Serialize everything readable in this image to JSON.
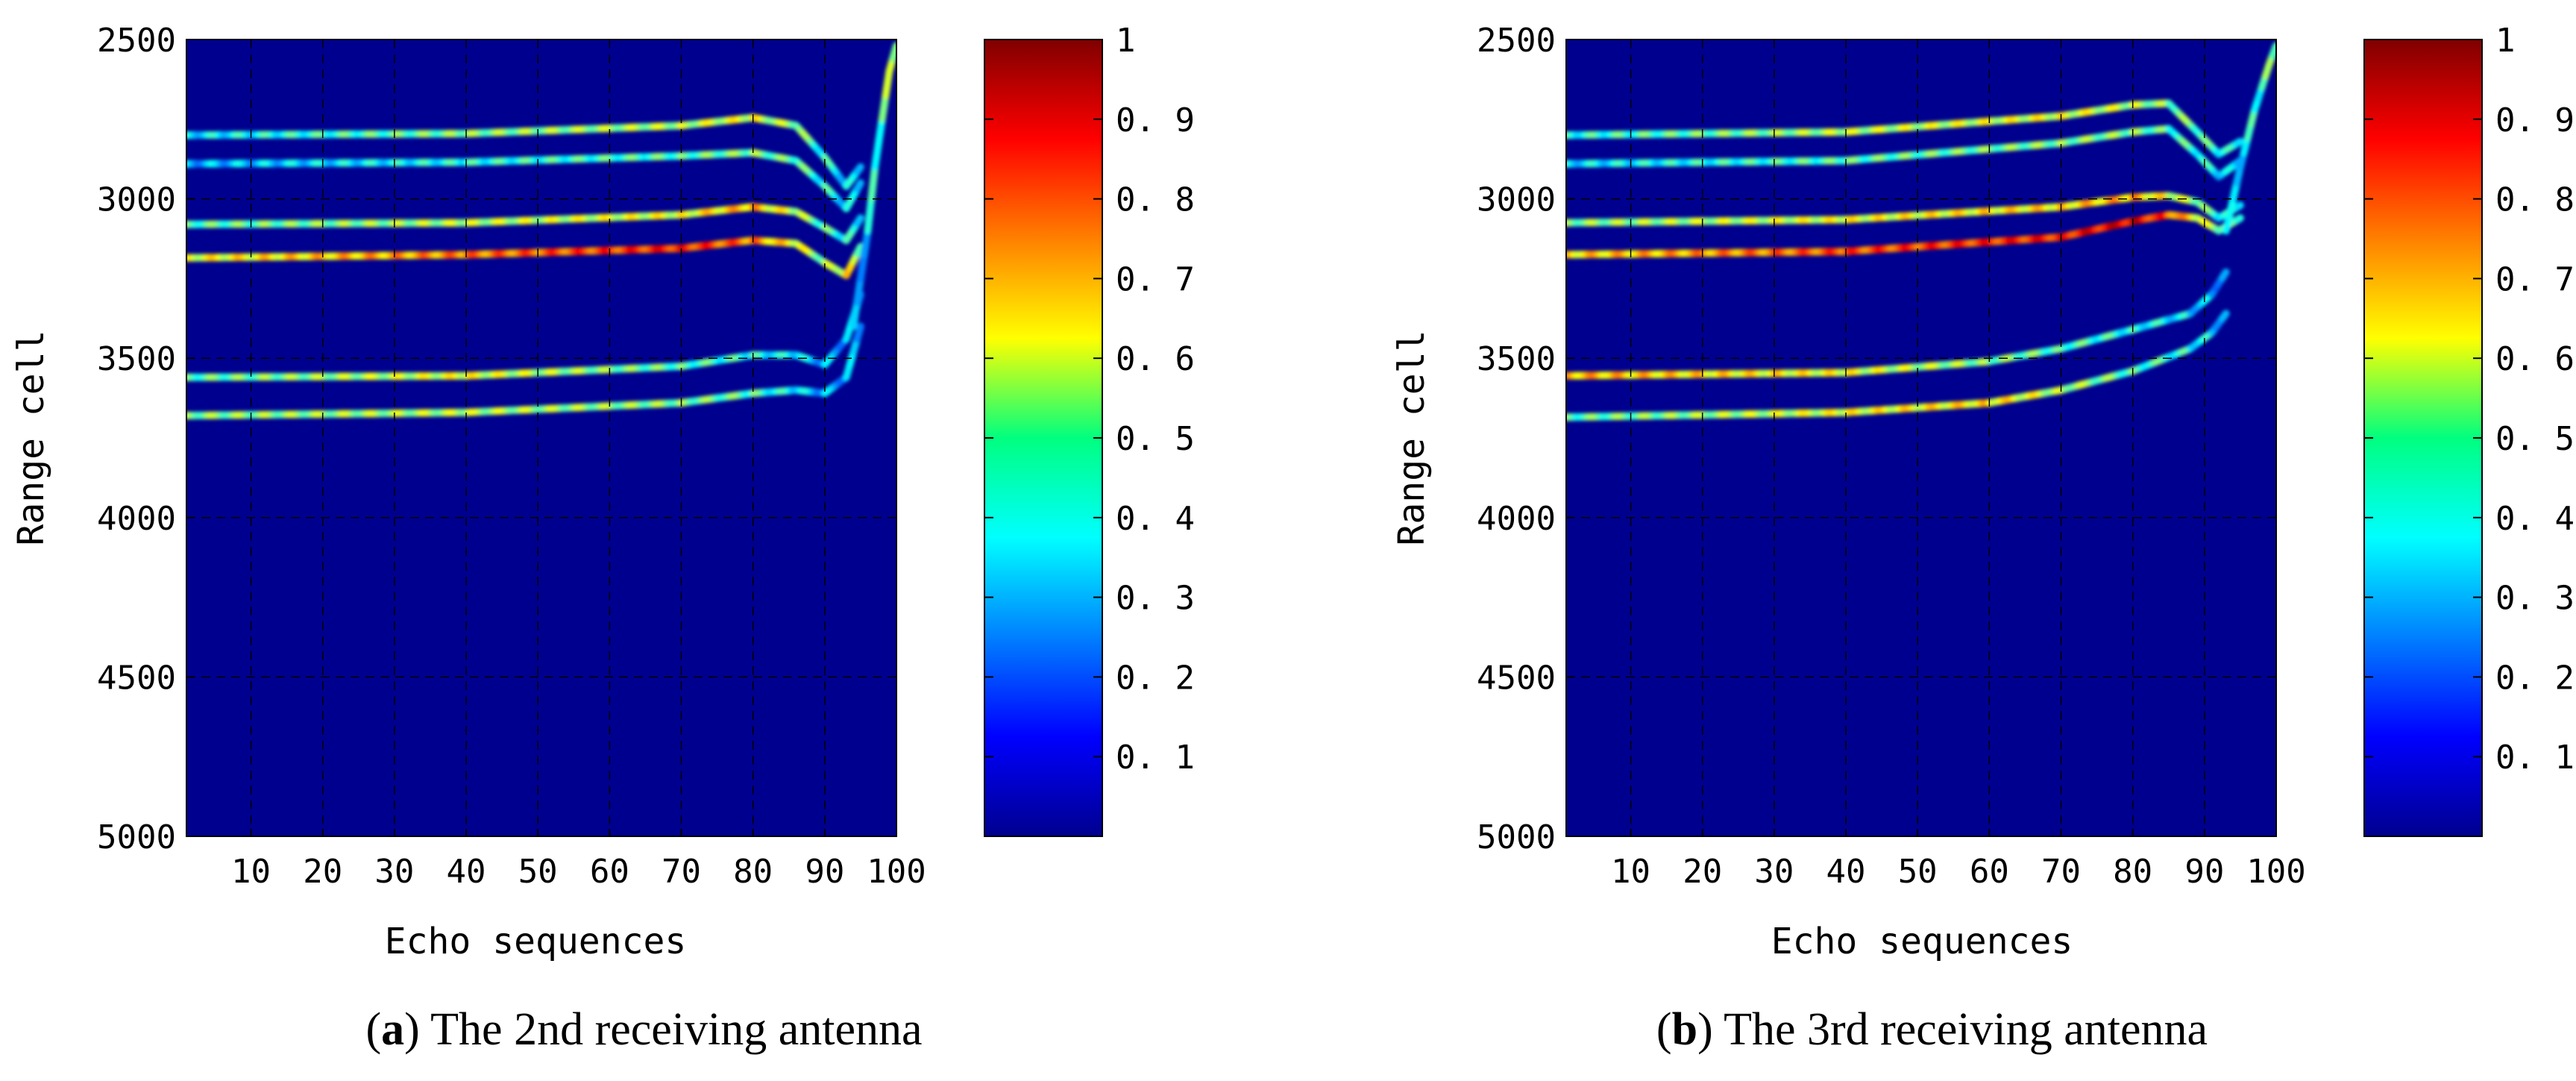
{
  "chart_data": [
    {
      "type": "heatmap",
      "panel_letter": "a",
      "caption": "The 2nd receiving antenna",
      "xlabel": "Echo sequences",
      "ylabel": "Range cell",
      "xlim": [
        1,
        100
      ],
      "ylim": [
        2500,
        5000
      ],
      "y_reversed": true,
      "xticks": [
        10,
        20,
        30,
        40,
        50,
        60,
        70,
        80,
        90,
        100
      ],
      "yticks": [
        2500,
        3000,
        3500,
        4000,
        4500,
        5000
      ],
      "grid": true,
      "colorbar": {
        "range": [
          0,
          1
        ],
        "ticks": [
          0.1,
          0.2,
          0.3,
          0.4,
          0.5,
          0.6,
          0.7,
          0.8,
          0.9,
          1
        ],
        "tick_labels": [
          "0. 1",
          "0. 2",
          "0. 3",
          "0. 4",
          "0. 5",
          "0. 6",
          "0. 7",
          "0. 8",
          "0. 9",
          "1"
        ],
        "colormap": "jet"
      },
      "background_value": 0.0,
      "tracks": [
        {
          "name": "track 1",
          "points": [
            [
              1,
              2800
            ],
            [
              40,
              2795
            ],
            [
              70,
              2770
            ],
            [
              80,
              2745
            ],
            [
              86,
              2770
            ],
            [
              90,
              2870
            ],
            [
              93,
              2960
            ],
            [
              95,
              2900
            ]
          ],
          "intensity": [
            0.35,
            0.5,
            0.55,
            0.6,
            0.5,
            0.4,
            0.35,
            0.3
          ]
        },
        {
          "name": "track 2",
          "points": [
            [
              1,
              2890
            ],
            [
              40,
              2885
            ],
            [
              70,
              2865
            ],
            [
              80,
              2855
            ],
            [
              86,
              2880
            ],
            [
              90,
              2960
            ],
            [
              93,
              3030
            ],
            [
              95,
              2950
            ]
          ],
          "intensity": [
            0.3,
            0.4,
            0.45,
            0.5,
            0.45,
            0.4,
            0.35,
            0.3
          ]
        },
        {
          "name": "track 3",
          "points": [
            [
              1,
              3080
            ],
            [
              40,
              3075
            ],
            [
              70,
              3050
            ],
            [
              80,
              3025
            ],
            [
              86,
              3040
            ],
            [
              90,
              3090
            ],
            [
              93,
              3130
            ],
            [
              95,
              3060
            ]
          ],
          "intensity": [
            0.45,
            0.55,
            0.6,
            0.7,
            0.55,
            0.45,
            0.4,
            0.3
          ]
        },
        {
          "name": "track 4",
          "points": [
            [
              1,
              3185
            ],
            [
              40,
              3175
            ],
            [
              70,
              3155
            ],
            [
              80,
              3130
            ],
            [
              86,
              3140
            ],
            [
              90,
              3200
            ],
            [
              93,
              3240
            ],
            [
              95,
              3150
            ]
          ],
          "intensity": [
            0.6,
            0.75,
            0.85,
            0.75,
            0.6,
            0.5,
            0.65,
            0.4
          ]
        },
        {
          "name": "track 5",
          "points": [
            [
              1,
              3560
            ],
            [
              40,
              3555
            ],
            [
              70,
              3525
            ],
            [
              80,
              3490
            ],
            [
              86,
              3490
            ],
            [
              90,
              3520
            ],
            [
              93,
              3440
            ],
            [
              95,
              3300
            ]
          ],
          "intensity": [
            0.45,
            0.6,
            0.45,
            0.4,
            0.35,
            0.3,
            0.3,
            0.25
          ]
        },
        {
          "name": "track 6",
          "points": [
            [
              1,
              3680
            ],
            [
              40,
              3670
            ],
            [
              70,
              3640
            ],
            [
              80,
              3610
            ],
            [
              86,
              3600
            ],
            [
              90,
              3610
            ],
            [
              93,
              3560
            ],
            [
              95,
              3400
            ]
          ],
          "intensity": [
            0.5,
            0.55,
            0.5,
            0.45,
            0.35,
            0.3,
            0.3,
            0.25
          ]
        },
        {
          "name": "track 7",
          "points": [
            [
              94,
              3400
            ],
            [
              96,
              3100
            ],
            [
              97,
              2900
            ],
            [
              98,
              2750
            ],
            [
              99,
              2600
            ],
            [
              100,
              2520
            ]
          ],
          "intensity": [
            0.3,
            0.35,
            0.4,
            0.5,
            0.55,
            0.5
          ]
        }
      ]
    },
    {
      "type": "heatmap",
      "panel_letter": "b",
      "caption": "The 3rd receiving antenna",
      "xlabel": "Echo sequences",
      "ylabel": "Range cell",
      "xlim": [
        1,
        100
      ],
      "ylim": [
        2500,
        5000
      ],
      "y_reversed": true,
      "xticks": [
        10,
        20,
        30,
        40,
        50,
        60,
        70,
        80,
        90,
        100
      ],
      "yticks": [
        2500,
        3000,
        3500,
        4000,
        4500,
        5000
      ],
      "grid": true,
      "colorbar": {
        "range": [
          0,
          1
        ],
        "ticks": [
          0.1,
          0.2,
          0.3,
          0.4,
          0.5,
          0.6,
          0.7,
          0.8,
          0.9,
          1
        ],
        "tick_labels": [
          "0. 1",
          "0. 2",
          "0. 3",
          "0. 4",
          "0. 5",
          "0. 6",
          "0. 7",
          "0. 8",
          "0. 9",
          "1"
        ],
        "colormap": "jet"
      },
      "background_value": 0.0,
      "tracks": [
        {
          "name": "track 1",
          "points": [
            [
              1,
              2800
            ],
            [
              40,
              2790
            ],
            [
              70,
              2740
            ],
            [
              80,
              2705
            ],
            [
              85,
              2700
            ],
            [
              89,
              2790
            ],
            [
              92,
              2860
            ],
            [
              95,
              2820
            ]
          ],
          "intensity": [
            0.4,
            0.55,
            0.6,
            0.55,
            0.5,
            0.45,
            0.4,
            0.35
          ]
        },
        {
          "name": "track 2",
          "points": [
            [
              1,
              2890
            ],
            [
              40,
              2880
            ],
            [
              70,
              2825
            ],
            [
              80,
              2790
            ],
            [
              85,
              2780
            ],
            [
              89,
              2860
            ],
            [
              92,
              2930
            ],
            [
              95,
              2880
            ]
          ],
          "intensity": [
            0.35,
            0.45,
            0.5,
            0.5,
            0.45,
            0.4,
            0.35,
            0.3
          ]
        },
        {
          "name": "track 3",
          "points": [
            [
              1,
              3075
            ],
            [
              40,
              3065
            ],
            [
              70,
              3025
            ],
            [
              80,
              2995
            ],
            [
              85,
              2990
            ],
            [
              89,
              3010
            ],
            [
              92,
              3060
            ],
            [
              95,
              3020
            ]
          ],
          "intensity": [
            0.5,
            0.6,
            0.65,
            0.7,
            0.6,
            0.5,
            0.4,
            0.35
          ]
        },
        {
          "name": "track 4",
          "points": [
            [
              1,
              3175
            ],
            [
              40,
              3165
            ],
            [
              70,
              3120
            ],
            [
              80,
              3070
            ],
            [
              85,
              3050
            ],
            [
              89,
              3060
            ],
            [
              92,
              3100
            ],
            [
              95,
              3060
            ]
          ],
          "intensity": [
            0.65,
            0.8,
            0.85,
            0.9,
            0.8,
            0.6,
            0.5,
            0.4
          ]
        },
        {
          "name": "track 5",
          "points": [
            [
              1,
              3555
            ],
            [
              40,
              3545
            ],
            [
              60,
              3510
            ],
            [
              70,
              3470
            ],
            [
              80,
              3410
            ],
            [
              88,
              3360
            ],
            [
              91,
              3300
            ],
            [
              93,
              3230
            ]
          ],
          "intensity": [
            0.7,
            0.6,
            0.5,
            0.45,
            0.4,
            0.35,
            0.3,
            0.3
          ]
        },
        {
          "name": "track 6",
          "points": [
            [
              1,
              3685
            ],
            [
              40,
              3670
            ],
            [
              60,
              3640
            ],
            [
              70,
              3600
            ],
            [
              80,
              3540
            ],
            [
              88,
              3470
            ],
            [
              91,
              3420
            ],
            [
              93,
              3360
            ]
          ],
          "intensity": [
            0.45,
            0.6,
            0.65,
            0.55,
            0.45,
            0.4,
            0.35,
            0.3
          ]
        },
        {
          "name": "track 7",
          "points": [
            [
              93,
              3100
            ],
            [
              95,
              2900
            ],
            [
              97,
              2720
            ],
            [
              98,
              2650
            ],
            [
              99,
              2580
            ],
            [
              100,
              2520
            ]
          ],
          "intensity": [
            0.3,
            0.35,
            0.4,
            0.45,
            0.5,
            0.45
          ]
        }
      ]
    }
  ]
}
